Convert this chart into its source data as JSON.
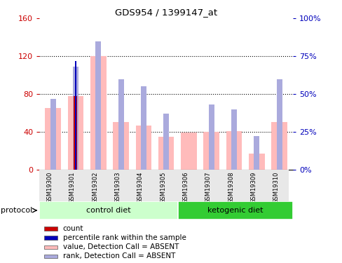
{
  "title": "GDS954 / 1399147_at",
  "samples": [
    "GSM19300",
    "GSM19301",
    "GSM19302",
    "GSM19303",
    "GSM19304",
    "GSM19305",
    "GSM19306",
    "GSM19307",
    "GSM19308",
    "GSM19309",
    "GSM19310"
  ],
  "value_absent": [
    65,
    78,
    120,
    50,
    47,
    35,
    39,
    40,
    41,
    17,
    50
  ],
  "rank_absent_pct": [
    47,
    68,
    85,
    60,
    55,
    37,
    0,
    43,
    40,
    22,
    60
  ],
  "count_value": [
    0,
    78,
    0,
    0,
    0,
    0,
    0,
    0,
    0,
    0,
    0
  ],
  "percentile_rank_pct": [
    0,
    72,
    0,
    0,
    0,
    0,
    0,
    0,
    0,
    0,
    0
  ],
  "ylim_left": [
    0,
    160
  ],
  "ylim_right": [
    0,
    100
  ],
  "yticks_left": [
    0,
    40,
    80,
    120,
    160
  ],
  "yticks_right": [
    0,
    25,
    50,
    75,
    100
  ],
  "yticklabels_left": [
    "0",
    "40",
    "80",
    "120",
    "160"
  ],
  "yticklabels_right": [
    "0%",
    "25%",
    "50%",
    "75%",
    "100%"
  ],
  "color_count": "#cc0000",
  "color_percentile": "#0000bb",
  "color_value_absent": "#ffbbbb",
  "color_rank_absent": "#aaaadd",
  "color_control_diet_light": "#ccffcc",
  "color_control_diet_dark": "#44dd44",
  "color_ketogenic_diet": "#33cc33",
  "left_tick_color": "#cc0000",
  "right_tick_color": "#0000bb",
  "grid_color": "black",
  "bg_color": "#e8e8e8",
  "ctrl_samples": 6,
  "keto_samples": 5
}
